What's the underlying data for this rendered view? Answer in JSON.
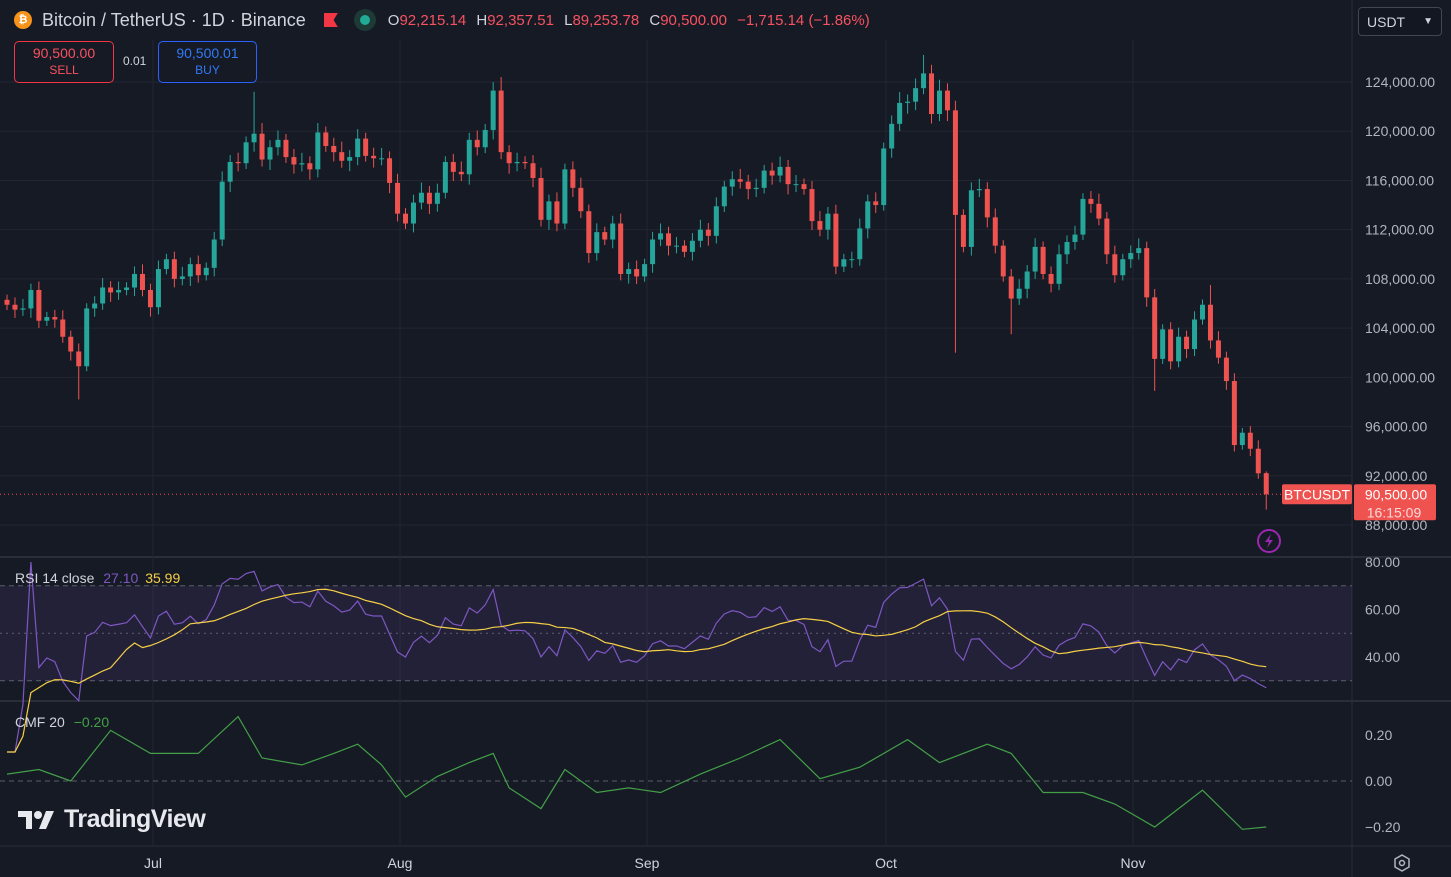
{
  "header": {
    "symbol_title": "Bitcoin / TetherUS · 1D · Binance",
    "coin_icon": "bitcoin-icon",
    "open_label": "O",
    "open": "92,215.14",
    "high_label": "H",
    "high": "92,357.51",
    "low_label": "L",
    "low": "89,253.78",
    "close_label": "C",
    "close": "90,500.00",
    "change": "−1,715.14 (−1.86%)"
  },
  "trade": {
    "sell_price": "90,500.00",
    "sell_label": "SELL",
    "spread": "0.01",
    "buy_price": "90,500.01",
    "buy_label": "BUY"
  },
  "currency_select": "USDT",
  "price_tag": {
    "symbol": "BTCUSDT",
    "price": "90,500.00",
    "countdown": "16:15:09"
  },
  "logo": "TradingView",
  "colors": {
    "background": "#161a25",
    "up": "#26a69a",
    "down": "#ef5350",
    "rsi": "#7e57c2",
    "rsi_ma": "#f7d046",
    "cmf": "#43a047",
    "grid": "#232632"
  },
  "chart_data": [
    {
      "type": "candlestick",
      "symbol": "BTCUSDT",
      "y_ticks": [
        "124,000.00",
        "120,000.00",
        "116,000.00",
        "112,000.00",
        "108,000.00",
        "104,000.00",
        "100,000.00",
        "96,000.00",
        "92,000.00",
        "88,000.00"
      ],
      "x_ticks": [
        "Jul",
        "Aug",
        "Sep",
        "Oct",
        "Nov"
      ],
      "ylim": [
        86000,
        127000
      ],
      "grid": true,
      "months": [
        {
          "month": "Jun",
          "first_day": 13,
          "close": [
            105900,
            105500,
            105600,
            107100,
            104600,
            104900,
            104700,
            103300,
            102100,
            100900,
            105600,
            106000,
            107300,
            106900,
            107100,
            107300,
            108400,
            107100
          ]
        },
        {
          "month": "Jul",
          "first_day": 1,
          "close": [
            105700,
            108800,
            109600,
            108000,
            108200,
            109200,
            108300,
            108900,
            111200,
            115900,
            117500,
            117400,
            119100,
            119800,
            117700,
            118700,
            119300,
            117900,
            117300,
            117400,
            116900,
            119900,
            118800,
            118300,
            117600,
            117900,
            119400,
            118000,
            117800,
            117800,
            115800
          ]
        },
        {
          "month": "Aug",
          "first_day": 1,
          "close": [
            113300,
            112500,
            114200,
            115000,
            114100,
            115000,
            117500,
            116700,
            116500,
            119300,
            118700,
            120100,
            123300,
            118300,
            117400,
            117500,
            117400,
            116200,
            112800,
            114300,
            112500,
            116900,
            115400,
            113500,
            110100,
            111800,
            111200,
            112500,
            108400,
            108800,
            108200
          ]
        },
        {
          "month": "Sep",
          "first_day": 1,
          "close": [
            109200,
            111200,
            111700,
            110700,
            110700,
            110200,
            111100,
            112000,
            111500,
            113900,
            115500,
            116100,
            115900,
            115300,
            115400,
            116800,
            116400,
            117100,
            115700,
            115700,
            115300,
            112700,
            112000,
            113300,
            109000,
            109600,
            109600,
            112100,
            114300,
            114000
          ]
        },
        {
          "month": "Oct",
          "first_day": 1,
          "close": [
            118600,
            120600,
            122300,
            122400,
            123500,
            124700,
            121400,
            123300,
            121700,
            113200,
            110600,
            115200,
            115300,
            113000,
            110700,
            108200,
            106400,
            107200,
            108600,
            110600,
            108400,
            107600,
            110000,
            111000,
            111600,
            114500,
            114100,
            112900,
            110000,
            108300,
            109600
          ]
        },
        {
          "month": "Nov",
          "first_day": 1,
          "close": [
            110100,
            110500,
            106500,
            101500,
            103900,
            101300,
            103300,
            102300,
            104700,
            105900,
            103000,
            101600,
            99700,
            94500,
            95500,
            94200,
            92200,
            90500
          ]
        }
      ],
      "notable_wicks": [
        [
          "Jun 22",
          "low",
          98200
        ],
        [
          "Jul 14",
          "high",
          123200
        ],
        [
          "Aug 14",
          "high",
          124400
        ],
        [
          "Oct 6",
          "high",
          126200
        ],
        [
          "Oct 10",
          "low",
          102000
        ],
        [
          "Oct 17",
          "low",
          103500
        ],
        [
          "Nov 4",
          "low",
          98900
        ],
        [
          "Nov 11",
          "high",
          107500
        ]
      ],
      "last_candle": {
        "open": 92215.14,
        "high": 92357.51,
        "low": 89253.78,
        "close": 90500.0
      },
      "current_price": 90500
    },
    {
      "type": "line",
      "indicator": "RSI",
      "label": "RSI 14 close",
      "value": "27.10",
      "ma_value": "35.99",
      "y_ticks": [
        "80.00",
        "60.00",
        "40.00"
      ],
      "bands": [
        30,
        50,
        70
      ],
      "ylim": [
        20,
        82
      ]
    },
    {
      "type": "line",
      "indicator": "CMF",
      "label": "CMF 20",
      "value": "−0.20",
      "y_ticks": [
        "0.20",
        "0.00",
        "−0.20"
      ],
      "ylim": [
        -0.28,
        0.32
      ],
      "points": [
        [
          "Jun 13",
          0.03
        ],
        [
          "Jun 17",
          0.05
        ],
        [
          "Jun 21",
          0.0
        ],
        [
          "Jun 26",
          0.22
        ],
        [
          "Jul 1",
          0.12
        ],
        [
          "Jul 7",
          0.12
        ],
        [
          "Jul 12",
          0.28
        ],
        [
          "Jul 15",
          0.1
        ],
        [
          "Jul 20",
          0.07
        ],
        [
          "Jul 24",
          0.12
        ],
        [
          "Jul 27",
          0.16
        ],
        [
          "Jul 30",
          0.07
        ],
        [
          "Aug 2",
          -0.07
        ],
        [
          "Aug 6",
          0.02
        ],
        [
          "Aug 10",
          0.08
        ],
        [
          "Aug 13",
          0.12
        ],
        [
          "Aug 15",
          -0.03
        ],
        [
          "Aug 19",
          -0.12
        ],
        [
          "Aug 22",
          0.05
        ],
        [
          "Aug 26",
          -0.05
        ],
        [
          "Aug 30",
          -0.03
        ],
        [
          "Sep 3",
          -0.05
        ],
        [
          "Sep 8",
          0.03
        ],
        [
          "Sep 13",
          0.1
        ],
        [
          "Sep 18",
          0.18
        ],
        [
          "Sep 23",
          0.01
        ],
        [
          "Sep 28",
          0.06
        ],
        [
          "Oct 4",
          0.18
        ],
        [
          "Oct 8",
          0.08
        ],
        [
          "Oct 14",
          0.16
        ],
        [
          "Oct 17",
          0.12
        ],
        [
          "Oct 21",
          -0.05
        ],
        [
          "Oct 26",
          -0.05
        ],
        [
          "Oct 30",
          -0.1
        ],
        [
          "Nov 4",
          -0.2
        ],
        [
          "Nov 7",
          -0.12
        ],
        [
          "Nov 10",
          -0.04
        ],
        [
          "Nov 15",
          -0.21
        ],
        [
          "Nov 18",
          -0.2
        ]
      ]
    }
  ]
}
